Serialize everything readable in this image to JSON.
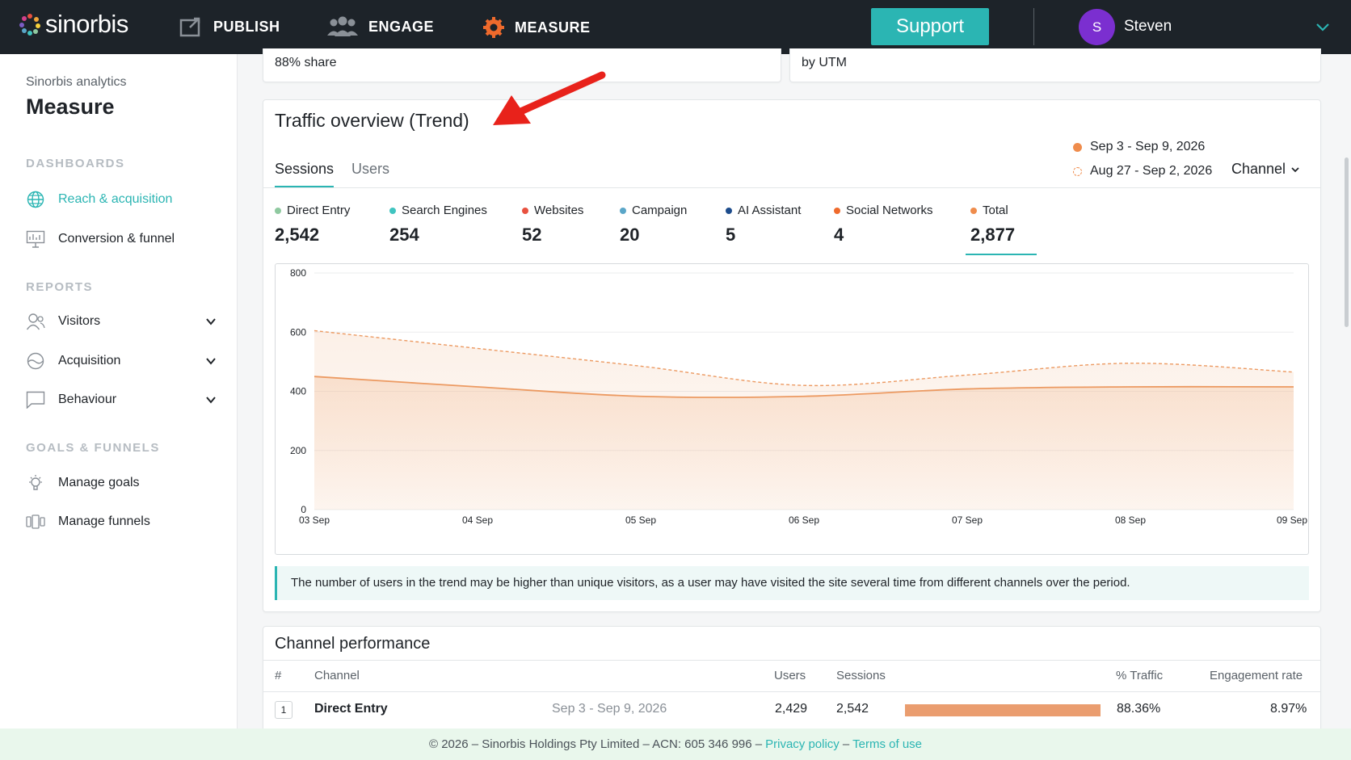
{
  "brand": {
    "name": "sinorbis"
  },
  "nav": {
    "items": [
      {
        "label": "PUBLISH"
      },
      {
        "label": "ENGAGE"
      },
      {
        "label": "MEASURE"
      }
    ],
    "support_label": "Support",
    "user": {
      "initial": "S",
      "name": "Steven"
    }
  },
  "sidebar": {
    "subtitle": "Sinorbis analytics",
    "title": "Measure",
    "sections": [
      {
        "label": "DASHBOARDS",
        "items": [
          {
            "label": "Reach & acquisition",
            "icon": "globe-icon",
            "active": true
          },
          {
            "label": "Conversion & funnel",
            "icon": "presentation-icon",
            "active": false
          }
        ]
      },
      {
        "label": "REPORTS",
        "items": [
          {
            "label": "Visitors",
            "icon": "users-icon"
          },
          {
            "label": "Acquisition",
            "icon": "acquisition-icon"
          },
          {
            "label": "Behaviour",
            "icon": "chat-icon"
          }
        ]
      },
      {
        "label": "GOALS & FUNNELS",
        "items": [
          {
            "label": "Manage goals",
            "icon": "lightbulb-icon"
          },
          {
            "label": "Manage funnels",
            "icon": "funnel-icon"
          }
        ]
      }
    ]
  },
  "stub_cards": {
    "left_text": "88% share",
    "right_text": "by UTM"
  },
  "traffic": {
    "title": "Traffic overview (Trend)",
    "tabs": [
      "Sessions",
      "Users"
    ],
    "current_range": "Sep 3 - Sep 9, 2026",
    "previous_range": "Aug 27 - Sep 2, 2026",
    "channel_dropdown": "Channel",
    "metrics": [
      {
        "label": "Direct Entry",
        "value": "2,542",
        "color": "#8fc9a0"
      },
      {
        "label": "Search Engines",
        "value": "254",
        "color": "#40c4c0"
      },
      {
        "label": "Websites",
        "value": "52",
        "color": "#e8513f"
      },
      {
        "label": "Campaign",
        "value": "20",
        "color": "#5aa6c8"
      },
      {
        "label": "AI Assistant",
        "value": "5",
        "color": "#1d4c8c"
      },
      {
        "label": "Social Networks",
        "value": "4",
        "color": "#ef6a2c"
      },
      {
        "label": "Total",
        "value": "2,877",
        "color": "#ef8c4c"
      }
    ],
    "note": "The number of users in the trend may be higher than unique visitors, as a user may have visited the site several time from different channels over the period."
  },
  "chart_data": {
    "type": "area",
    "x": [
      "03 Sep",
      "04 Sep",
      "05 Sep",
      "06 Sep",
      "07 Sep",
      "08 Sep",
      "09 Sep"
    ],
    "ylim": [
      0,
      800
    ],
    "yticks": [
      "0",
      "200",
      "400",
      "600",
      "800"
    ],
    "grid": true,
    "series": [
      {
        "values": [
          450,
          415,
          383,
          383,
          408,
          415,
          415
        ],
        "color": "#ec9a62",
        "style": "solid",
        "fill": true
      },
      {
        "values": [
          605,
          545,
          485,
          420,
          455,
          495,
          465
        ],
        "color": "#ec9a62",
        "style": "dashed",
        "fill": true
      }
    ]
  },
  "channels": {
    "title": "Channel performance",
    "headers": {
      "num": "#",
      "channel": "Channel",
      "users": "Users",
      "sessions": "Sessions",
      "traffic": "% Traffic",
      "engagement": "Engagement rate"
    },
    "rows": [
      {
        "num": "1",
        "channel": "Direct Entry",
        "range": "Sep 3 - Sep 9, 2026",
        "users": "2,429",
        "sessions": "2,542",
        "traffic_fraction": 1.0,
        "traffic": "88.36%",
        "engagement": "8.97%"
      }
    ]
  },
  "footer": {
    "text": "© 2026 – Sinorbis Holdings Pty Limited – ACN: 605 346 996 –",
    "privacy": "Privacy policy",
    "sep": "–",
    "terms": "Terms of use"
  },
  "colors": {
    "accent": "#2bb5b3",
    "topbar": "#1d2329",
    "series": "#ec9a62",
    "annotation": "#e8221b"
  }
}
